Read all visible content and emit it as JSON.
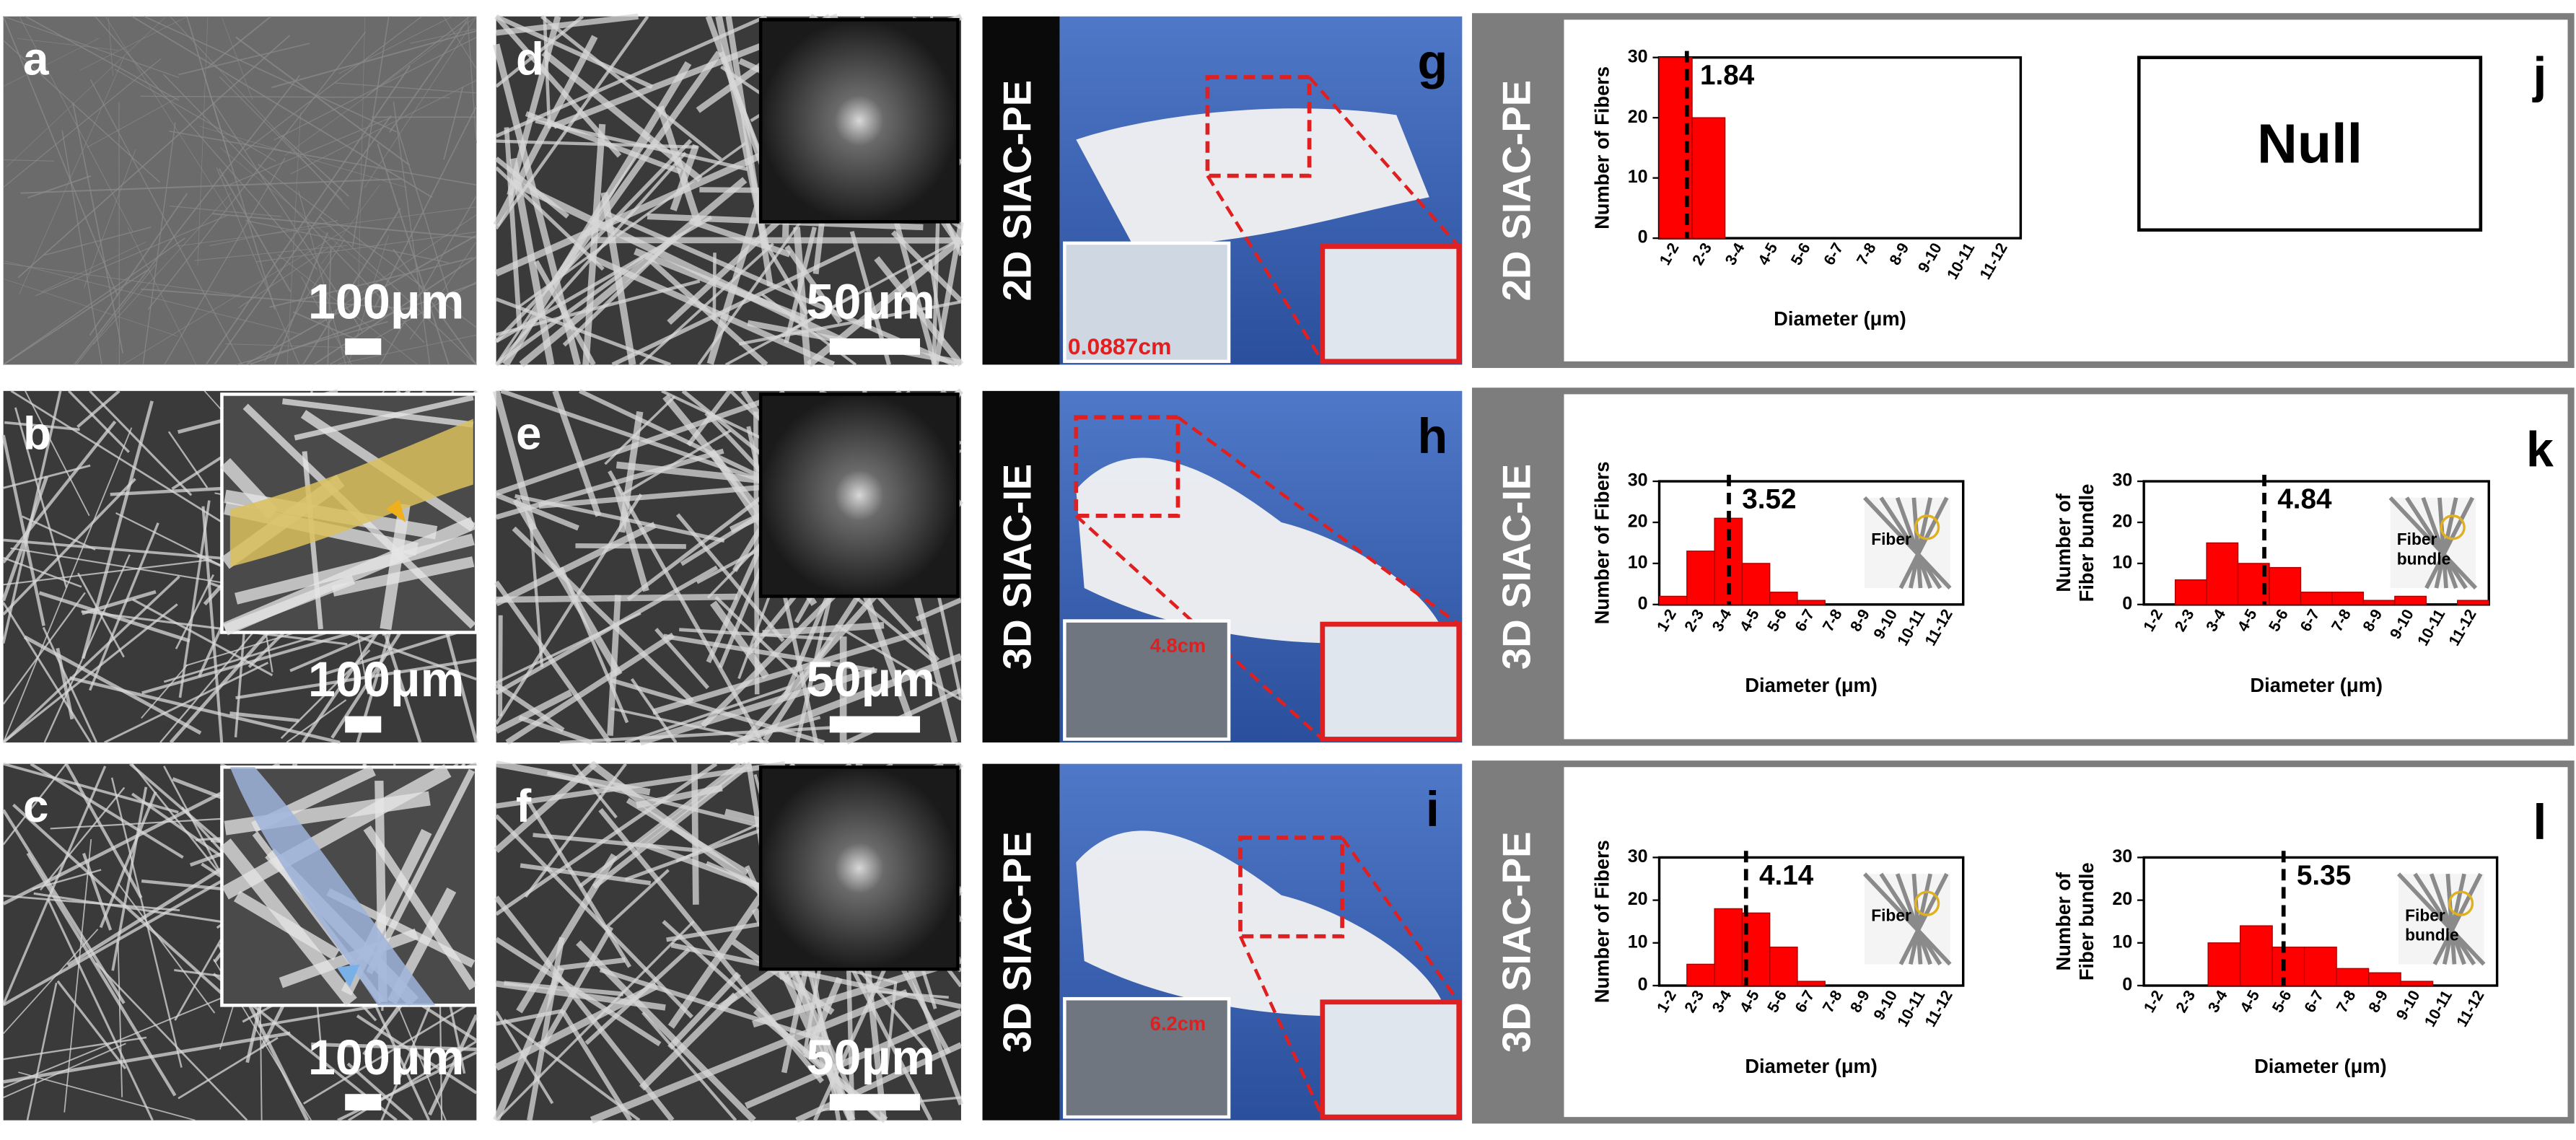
{
  "sem_panels": [
    {
      "letter": "a",
      "scale": "100μm"
    },
    {
      "letter": "b",
      "scale": "100μm"
    },
    {
      "letter": "c",
      "scale": "100μm"
    },
    {
      "letter": "d",
      "scale": "50μm"
    },
    {
      "letter": "e",
      "scale": "50μm"
    },
    {
      "letter": "f",
      "scale": "50μm"
    }
  ],
  "photo_panels": [
    {
      "letter": "g",
      "sample": "2D SIAC-PE",
      "measure": "0.0887cm"
    },
    {
      "letter": "h",
      "sample": "3D SIAC-IE",
      "measure": "4.8cm"
    },
    {
      "letter": "i",
      "sample": "3D SIAC-PE",
      "measure": "6.2cm"
    }
  ],
  "chart_rows": [
    {
      "letter": "j",
      "sample": "2D SIAC-PE",
      "null_text": "Null"
    },
    {
      "letter": "k",
      "sample": "3D SIAC-IE"
    },
    {
      "letter": "l",
      "sample": "3D SIAC-PE"
    }
  ],
  "chart_data": [
    {
      "type": "bar",
      "categories": [
        "1-2",
        "2-3",
        "3-4",
        "4-5",
        "5-6",
        "6-7",
        "7-8",
        "8-9",
        "9-10",
        "10-11",
        "11-12"
      ],
      "values": [
        30,
        20,
        0,
        0,
        0,
        0,
        0,
        0,
        0,
        0,
        0
      ],
      "color": "#ff0000",
      "xlim": [
        1,
        12
      ],
      "ylim": [
        0,
        30
      ],
      "yticks": [
        0,
        10,
        20,
        30
      ],
      "y_label": [
        "Number of Fibers"
      ],
      "x_label": "Diameter (μm)",
      "mean": 1.84
    },
    {
      "type": "bar",
      "categories": [
        "1-2",
        "2-3",
        "3-4",
        "4-5",
        "5-6",
        "6-7",
        "7-8",
        "8-9",
        "9-10",
        "10-11",
        "11-12"
      ],
      "values": [
        2,
        13,
        21,
        10,
        3,
        1,
        0,
        0,
        0,
        0,
        0
      ],
      "color": "#ff0000",
      "xlim": [
        1,
        12
      ],
      "ylim": [
        0,
        30
      ],
      "yticks": [
        0,
        10,
        20,
        30
      ],
      "y_label": [
        "Number of Fibers"
      ],
      "x_label": "Diameter (μm)",
      "mean": 3.52,
      "inset_label": [
        "Fiber"
      ]
    },
    {
      "type": "bar",
      "categories": [
        "1-2",
        "2-3",
        "3-4",
        "4-5",
        "5-6",
        "6-7",
        "7-8",
        "8-9",
        "9-10",
        "10-11",
        "11-12"
      ],
      "values": [
        0,
        6,
        15,
        10,
        9,
        3,
        3,
        1,
        2,
        0,
        1
      ],
      "color": "#ff0000",
      "xlim": [
        1,
        12
      ],
      "ylim": [
        0,
        30
      ],
      "yticks": [
        0,
        10,
        20,
        30
      ],
      "y_label": [
        "Number of",
        "Fiber bundle"
      ],
      "x_label": "Diameter (μm)",
      "mean": 4.84,
      "inset_label": [
        "Fiber",
        "bundle"
      ]
    },
    {
      "type": "bar",
      "categories": [
        "1-2",
        "2-3",
        "3-4",
        "4-5",
        "5-6",
        "6-7",
        "7-8",
        "8-9",
        "9-10",
        "10-11",
        "11-12"
      ],
      "values": [
        0,
        5,
        18,
        17,
        9,
        1,
        0,
        0,
        0,
        0,
        0
      ],
      "color": "#ff0000",
      "xlim": [
        1,
        12
      ],
      "ylim": [
        0,
        30
      ],
      "yticks": [
        0,
        10,
        20,
        30
      ],
      "y_label": [
        "Number of Fibers"
      ],
      "x_label": "Diameter (μm)",
      "mean": 4.14,
      "inset_label": [
        "Fiber"
      ]
    },
    {
      "type": "bar",
      "categories": [
        "1-2",
        "2-3",
        "3-4",
        "4-5",
        "5-6",
        "6-7",
        "7-8",
        "8-9",
        "9-10",
        "10-11",
        "11-12"
      ],
      "values": [
        0,
        0,
        10,
        14,
        9,
        9,
        4,
        3,
        1,
        0,
        0
      ],
      "color": "#ff0000",
      "xlim": [
        1,
        12
      ],
      "ylim": [
        0,
        30
      ],
      "yticks": [
        0,
        10,
        20,
        30
      ],
      "y_label": [
        "Number of",
        "Fiber bundle"
      ],
      "x_label": "Diameter (μm)",
      "mean": 5.35,
      "inset_label": [
        "Fiber",
        "bundle"
      ]
    }
  ]
}
